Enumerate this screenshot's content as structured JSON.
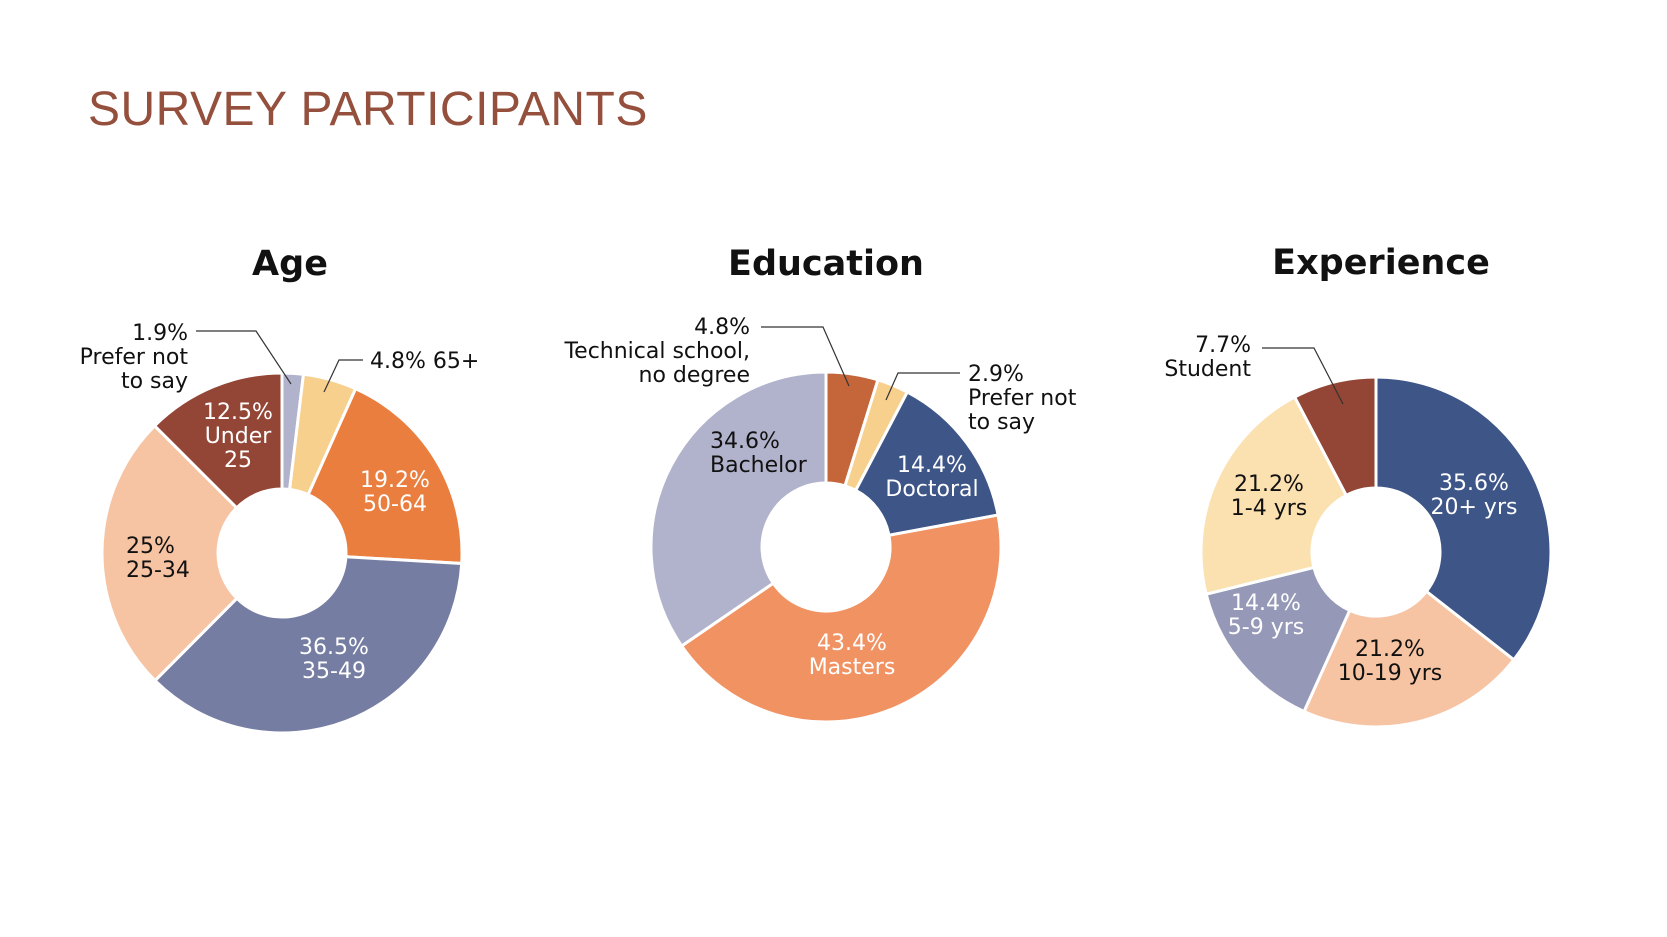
{
  "slide": {
    "title": "SURVEY PARTICIPANTS"
  },
  "chart_data": [
    {
      "type": "pie",
      "title": "Age",
      "series": [
        {
          "value": 1.9,
          "label": [
            "1.9%",
            "Prefer not",
            "to say"
          ],
          "color": "#b1b2cb",
          "text_color": "#111111"
        },
        {
          "value": 4.8,
          "label": [
            "4.8% 65+"
          ],
          "color": "#f7d08e",
          "text_color": "#111111"
        },
        {
          "value": 19.2,
          "label": [
            "19.2%",
            "50-64"
          ],
          "color": "#ea7e3f",
          "text_color": "#ffffff"
        },
        {
          "value": 36.5,
          "label": [
            "36.5%",
            "35-49"
          ],
          "color": "#767da2",
          "text_color": "#ffffff"
        },
        {
          "value": 25,
          "label": [
            "25%",
            "25-34"
          ],
          "color": "#f6c3a3",
          "text_color": "#111111"
        },
        {
          "value": 12.5,
          "label": [
            "12.5%",
            "Under",
            "25"
          ],
          "color": "#934536",
          "text_color": "#ffffff"
        }
      ]
    },
    {
      "type": "pie",
      "title": "Education",
      "series": [
        {
          "value": 4.8,
          "label": [
            "4.8%",
            "Technical school,",
            "no degree"
          ],
          "color": "#c4653a",
          "text_color": "#111111"
        },
        {
          "value": 2.9,
          "label": [
            "2.9%",
            "Prefer not",
            "to say"
          ],
          "color": "#f7d08e",
          "text_color": "#111111"
        },
        {
          "value": 14.4,
          "label": [
            "14.4%",
            "Doctoral"
          ],
          "color": "#3e5588",
          "text_color": "#ffffff"
        },
        {
          "value": 43.4,
          "label": [
            "43.4%",
            "Masters"
          ],
          "color": "#f09262",
          "text_color": "#ffffff"
        },
        {
          "value": 34.6,
          "label": [
            "34.6%",
            "Bachelor"
          ],
          "color": "#b1b2cb",
          "text_color": "#111111"
        }
      ]
    },
    {
      "type": "pie",
      "title": "Experience",
      "series": [
        {
          "value": 35.6,
          "label": [
            "35.6%",
            "20+ yrs"
          ],
          "color": "#3e5588",
          "text_color": "#ffffff"
        },
        {
          "value": 21.2,
          "label": [
            "21.2%",
            "10-19 yrs"
          ],
          "color": "#f6c3a3",
          "text_color": "#111111"
        },
        {
          "value": 14.4,
          "label": [
            "14.4%",
            "5-9 yrs"
          ],
          "color": "#9598b7",
          "text_color": "#ffffff"
        },
        {
          "value": 21.2,
          "label": [
            "21.2%",
            "1-4 yrs"
          ],
          "color": "#fbe0b0",
          "text_color": "#111111"
        },
        {
          "value": 7.7,
          "label": [
            "7.7%",
            "Student"
          ],
          "color": "#934536",
          "text_color": "#111111"
        }
      ]
    }
  ]
}
